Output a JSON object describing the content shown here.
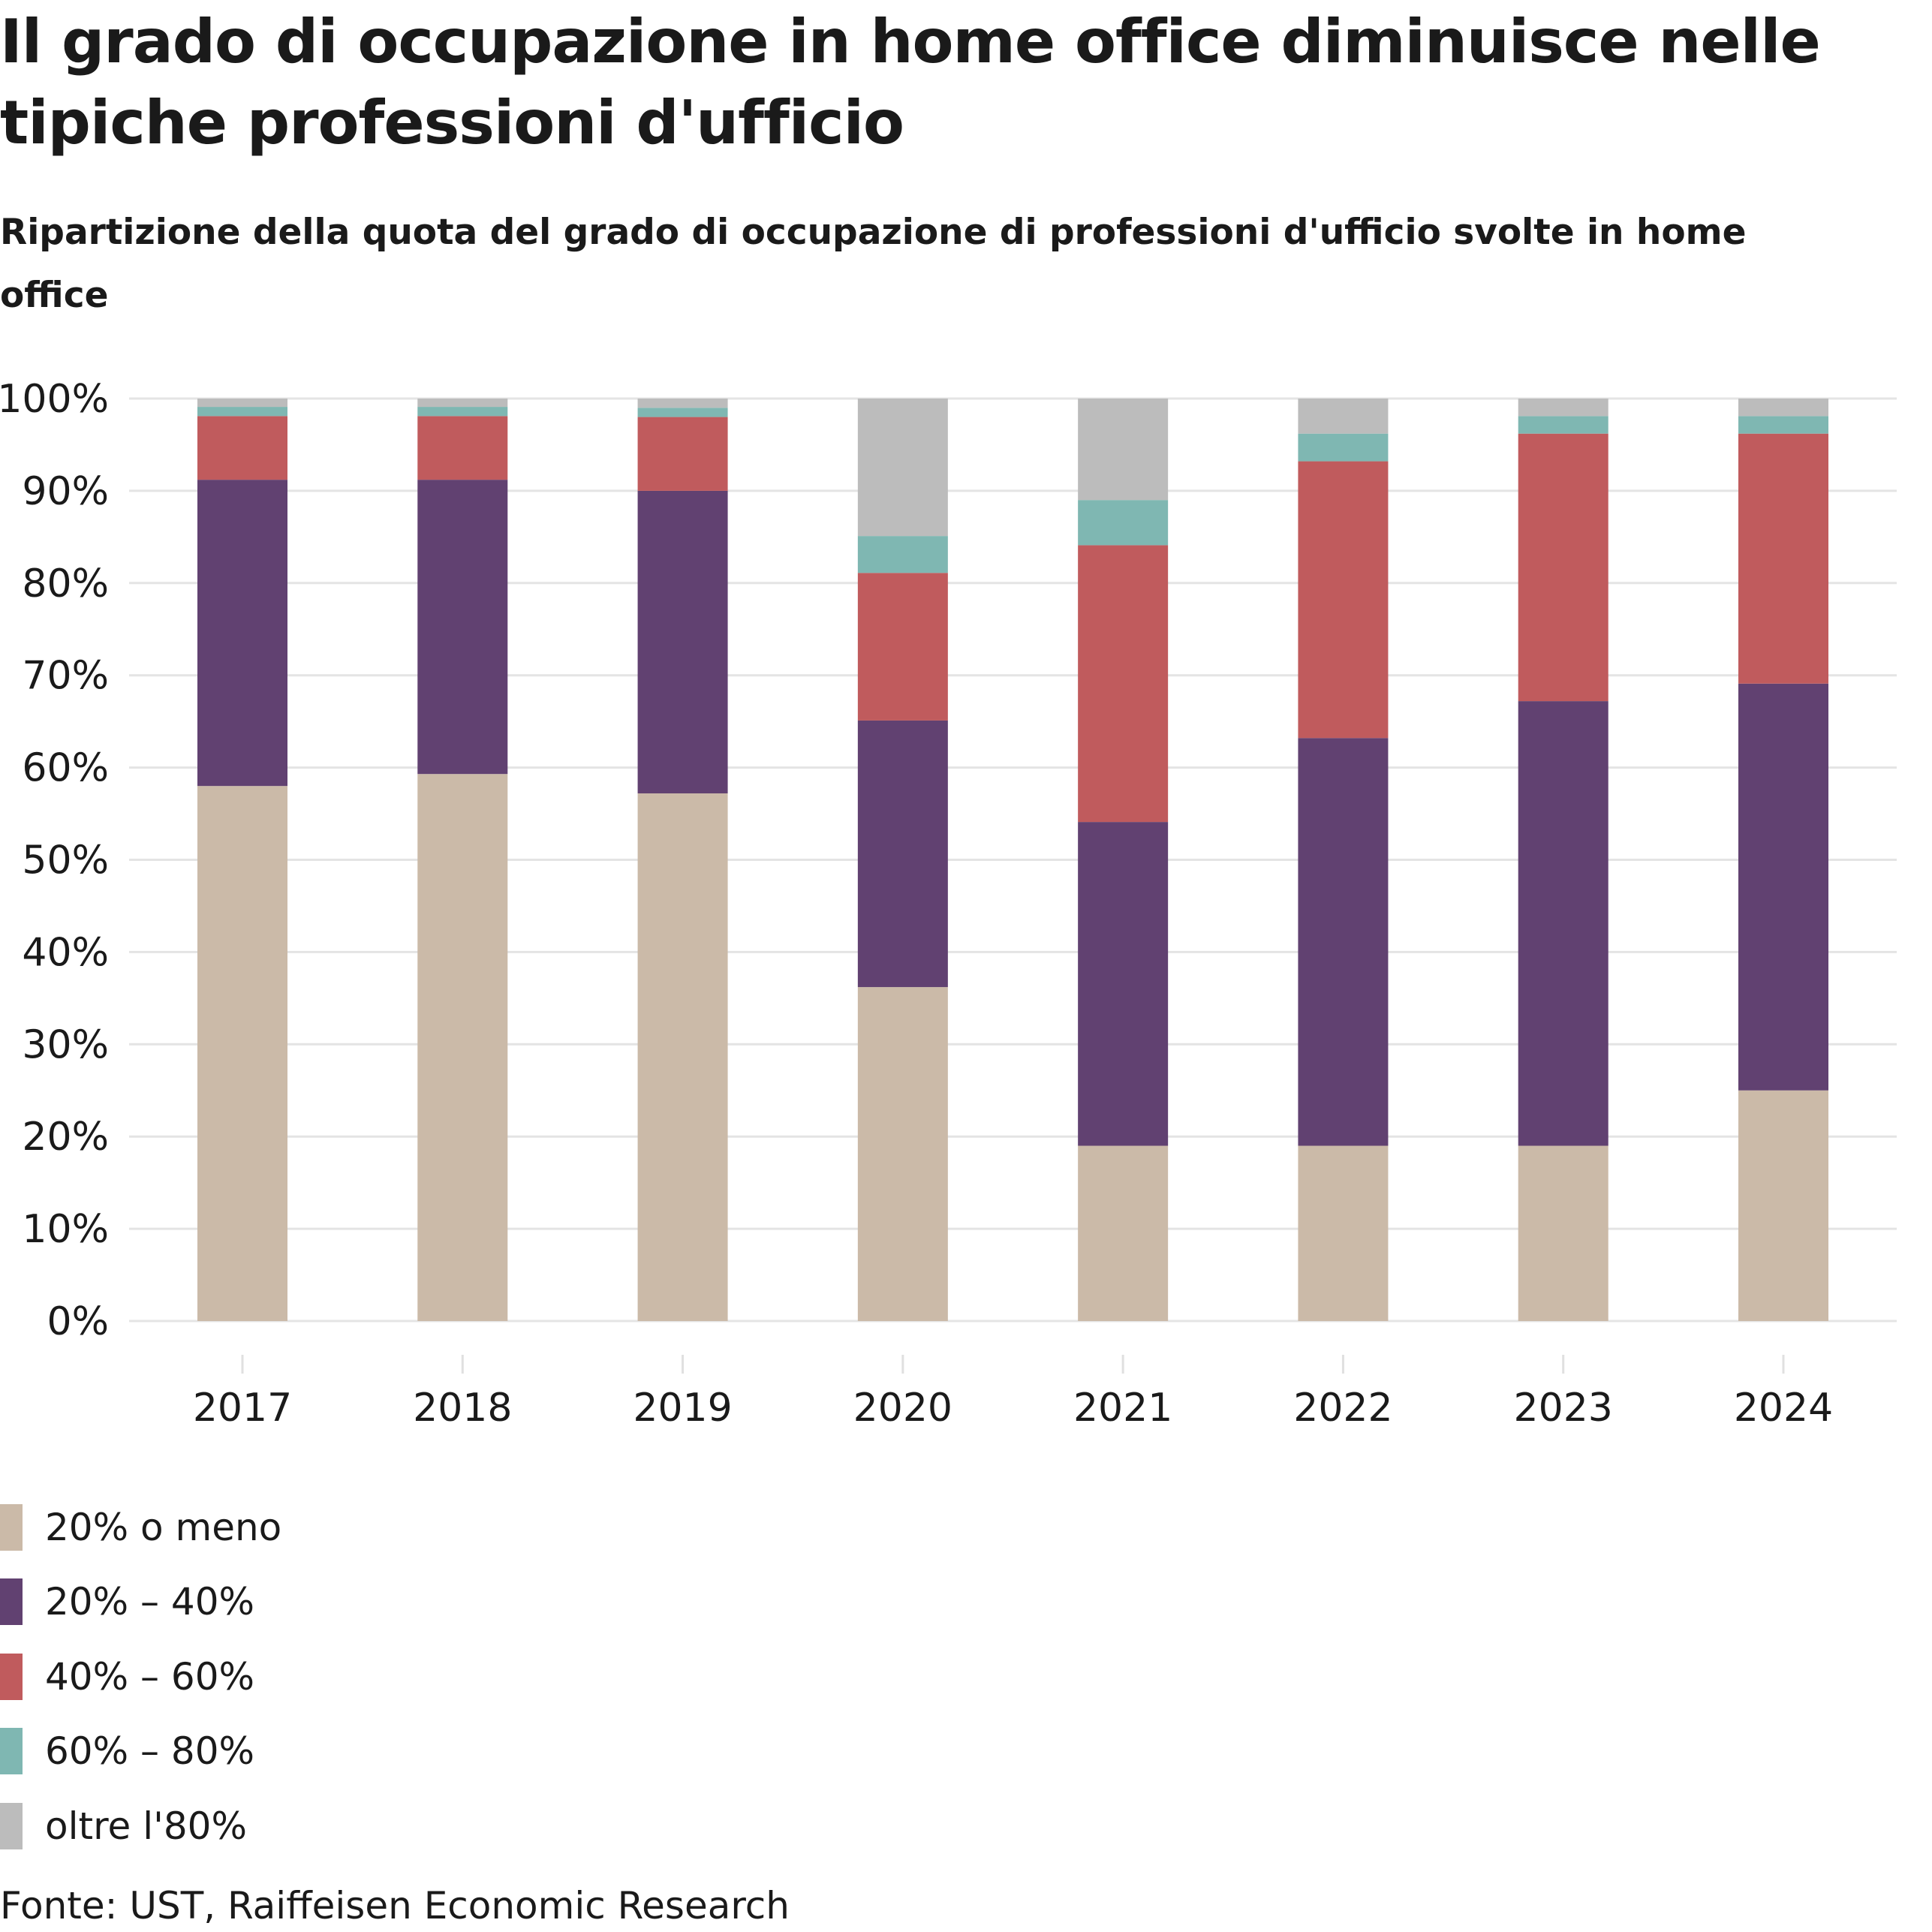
{
  "chart_data": {
    "type": "bar",
    "stacked": true,
    "title": "Il grado di occupazione in home office diminuisce nelle tipiche professioni d'ufficio",
    "subtitle": "Ripartizione della quota del grado di occupazione di professioni d'ufficio svolte in home office",
    "xlabel": "",
    "ylabel": "",
    "ylim": [
      0,
      100
    ],
    "grid": true,
    "legend_position": "bottom-left",
    "categories": [
      "2017",
      "2018",
      "2019",
      "2020",
      "2021",
      "2022",
      "2023",
      "2024"
    ],
    "y_ticks": [
      "0%",
      "10%",
      "20%",
      "30%",
      "40%",
      "50%",
      "60%",
      "70%",
      "80%",
      "90%",
      "100%"
    ],
    "series": [
      {
        "name": "20% o meno",
        "color": "#cbbaa8",
        "values": [
          58.0,
          59.3,
          57.2,
          36.2,
          19.0,
          19.0,
          19.0,
          25.0
        ]
      },
      {
        "name": "20% – 40%",
        "color": "#614171",
        "values": [
          33.2,
          31.9,
          32.8,
          28.9,
          35.1,
          44.2,
          48.2,
          44.1
        ]
      },
      {
        "name": "40% – 60%",
        "color": "#c05b5d",
        "values": [
          6.9,
          6.9,
          8.0,
          16.0,
          30.0,
          30.0,
          29.0,
          27.1
        ]
      },
      {
        "name": "60% – 80%",
        "color": "#7fb7b2",
        "values": [
          1.0,
          1.0,
          1.0,
          4.0,
          4.9,
          3.0,
          1.9,
          1.9
        ]
      },
      {
        "name": "oltre l'80%",
        "color": "#bcbcbc",
        "values": [
          0.9,
          0.9,
          1.0,
          14.9,
          11.0,
          3.8,
          1.9,
          1.9
        ]
      }
    ]
  },
  "footer": {
    "source": "Fonte: UST, Raiffeisen Economic Research"
  }
}
